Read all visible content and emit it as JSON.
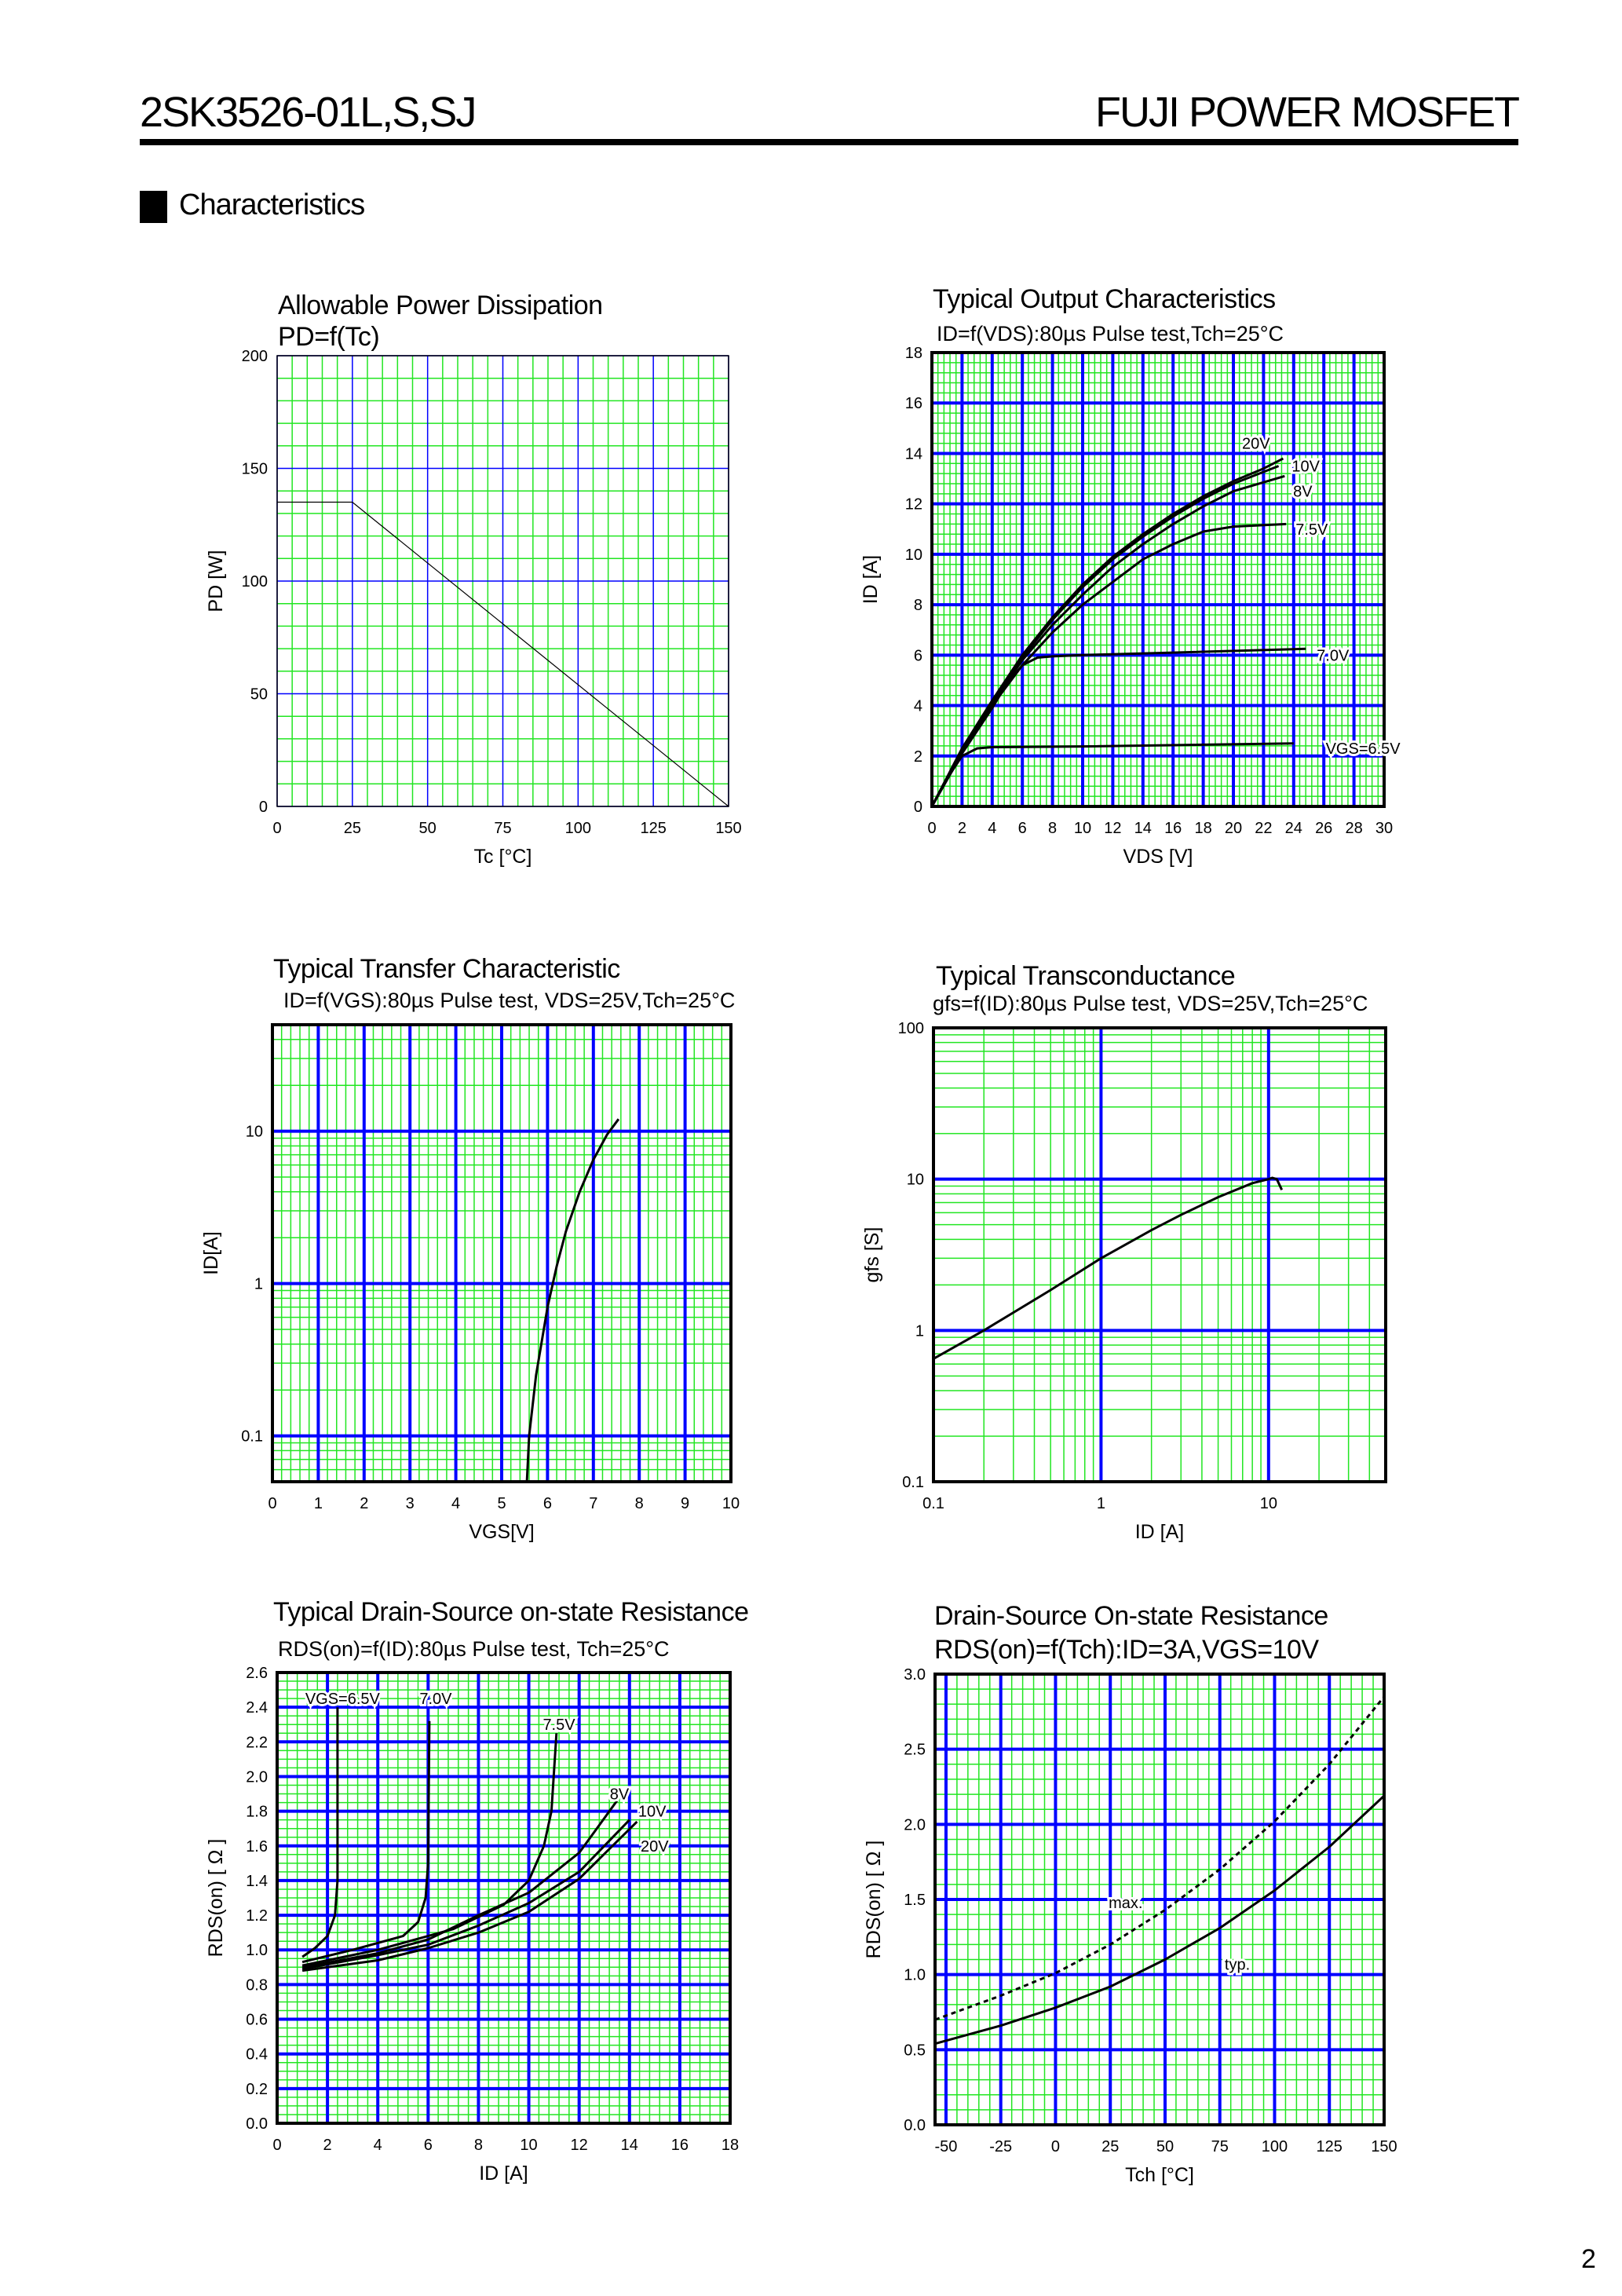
{
  "header": {
    "part_number": "2SK3526-01L,S,SJ",
    "brand": "FUJI POWER MOSFET",
    "section": "Characteristics",
    "page_number": "2"
  },
  "colors": {
    "grid_major": "#0000ff",
    "grid_minor": "#22e622",
    "curve": "#000000",
    "frame": "#000000"
  },
  "chart_data": [
    {
      "type": "line",
      "title": "Allowable Power Dissipation",
      "subtitle": "PD=f(Tc)",
      "xlabel": "Tc [°C]",
      "ylabel": "PD [W]",
      "x_axis": {
        "scale": "linear",
        "range": [
          0,
          150
        ],
        "major": 25,
        "minor": 5,
        "ticks": [
          "0",
          "25",
          "50",
          "75",
          "100",
          "125",
          "150"
        ]
      },
      "y_axis": {
        "scale": "linear",
        "range": [
          0,
          200
        ],
        "major": 50,
        "minor": 10,
        "ticks": [
          "0",
          "50",
          "100",
          "150",
          "200"
        ]
      },
      "grid": true,
      "series": [
        {
          "points": [
            [
              0,
              135
            ],
            [
              25,
              135
            ],
            [
              150,
              0
            ]
          ]
        }
      ]
    },
    {
      "type": "line",
      "title": "Typical Output Characteristics",
      "subtitle": "ID=f(VDS):80µs Pulse test,Tch=25°C",
      "xlabel": "VDS [V]",
      "ylabel": "ID [A]",
      "x_axis": {
        "scale": "linear",
        "range": [
          0,
          30
        ],
        "major": 2,
        "minor": 0.4,
        "ticks": [
          "0",
          "2",
          "4",
          "6",
          "8",
          "10",
          "12",
          "14",
          "16",
          "18",
          "20",
          "22",
          "24",
          "26",
          "28",
          "30"
        ]
      },
      "y_axis": {
        "scale": "linear",
        "range": [
          0,
          18
        ],
        "major": 2,
        "minor": 0.4,
        "ticks": [
          "0",
          "2",
          "4",
          "6",
          "8",
          "10",
          "12",
          "14",
          "16",
          "18"
        ]
      },
      "grid": true,
      "series": [
        {
          "name": "20V",
          "points": [
            [
              0,
              0
            ],
            [
              2,
              2.3
            ],
            [
              4,
              4.2
            ],
            [
              6,
              6.0
            ],
            [
              8,
              7.5
            ],
            [
              10,
              8.8
            ],
            [
              12,
              9.9
            ],
            [
              14,
              10.8
            ],
            [
              16,
              11.6
            ],
            [
              18,
              12.3
            ],
            [
              20,
              12.9
            ],
            [
              22,
              13.4
            ],
            [
              23.3,
              13.8
            ]
          ]
        },
        {
          "name": "10V",
          "points": [
            [
              0,
              0
            ],
            [
              2,
              2.25
            ],
            [
              4,
              4.15
            ],
            [
              6,
              5.9
            ],
            [
              8,
              7.4
            ],
            [
              10,
              8.7
            ],
            [
              12,
              9.8
            ],
            [
              14,
              10.7
            ],
            [
              16,
              11.5
            ],
            [
              18,
              12.2
            ],
            [
              20,
              12.8
            ],
            [
              23,
              13.5
            ]
          ]
        },
        {
          "name": "8V",
          "points": [
            [
              0,
              0
            ],
            [
              2,
              2.2
            ],
            [
              4,
              4.1
            ],
            [
              6,
              5.8
            ],
            [
              8,
              7.2
            ],
            [
              10,
              8.4
            ],
            [
              12,
              9.5
            ],
            [
              14,
              10.4
            ],
            [
              16,
              11.2
            ],
            [
              18,
              11.9
            ],
            [
              20,
              12.5
            ],
            [
              23.4,
              13.1
            ]
          ]
        },
        {
          "name": "7.5V",
          "points": [
            [
              0,
              0
            ],
            [
              2,
              2.2
            ],
            [
              4,
              4.0
            ],
            [
              6,
              5.6
            ],
            [
              8,
              6.9
            ],
            [
              10,
              8.0
            ],
            [
              12,
              8.9
            ],
            [
              14,
              9.8
            ],
            [
              16,
              10.4
            ],
            [
              18,
              10.9
            ],
            [
              20,
              11.1
            ],
            [
              23.5,
              11.2
            ]
          ]
        },
        {
          "name": "7.0V",
          "points": [
            [
              0,
              0
            ],
            [
              2,
              2.1
            ],
            [
              4,
              3.9
            ],
            [
              5,
              4.9
            ],
            [
              6,
              5.6
            ],
            [
              7,
              5.9
            ],
            [
              8,
              5.95
            ],
            [
              10,
              6.0
            ],
            [
              16,
              6.1
            ],
            [
              24.8,
              6.25
            ]
          ]
        },
        {
          "name": "VGS=6.5V",
          "points": [
            [
              0,
              0
            ],
            [
              1,
              1.1
            ],
            [
              2,
              2.0
            ],
            [
              3,
              2.3
            ],
            [
              4,
              2.35
            ],
            [
              10,
              2.38
            ],
            [
              24,
              2.5
            ]
          ]
        }
      ]
    },
    {
      "type": "line",
      "title": "Typical Transfer Characteristic",
      "subtitle": "ID=f(VGS):80µs Pulse test, VDS=25V,Tch=25°C",
      "xlabel": "VGS[V]",
      "ylabel": "ID[A]",
      "x_axis": {
        "scale": "linear",
        "range": [
          0,
          10
        ],
        "major": 1,
        "minor": 0.2,
        "ticks": [
          "0",
          "1",
          "2",
          "3",
          "4",
          "5",
          "6",
          "7",
          "8",
          "9",
          "10"
        ]
      },
      "y_axis": {
        "scale": "log",
        "range": [
          0.05,
          50
        ],
        "ticks": [
          "0.1",
          "1",
          "10"
        ]
      },
      "grid": true,
      "series": [
        {
          "points": [
            [
              5.55,
              0.05
            ],
            [
              5.6,
              0.1
            ],
            [
              5.75,
              0.25
            ],
            [
              6.0,
              0.7
            ],
            [
              6.2,
              1.3
            ],
            [
              6.4,
              2.2
            ],
            [
              6.7,
              4
            ],
            [
              7.0,
              6.5
            ],
            [
              7.3,
              9.5
            ],
            [
              7.55,
              12
            ]
          ]
        }
      ]
    },
    {
      "type": "line",
      "title": "Typical Transconductance",
      "subtitle": "gfs=f(ID):80µs Pulse test, VDS=25V,Tch=25°C",
      "xlabel": "ID [A]",
      "ylabel": "gfs [S]",
      "x_axis": {
        "scale": "log",
        "range": [
          0.1,
          50
        ],
        "ticks": [
          "0.1",
          "1",
          "10"
        ]
      },
      "y_axis": {
        "scale": "log",
        "range": [
          0.1,
          100
        ],
        "ticks": [
          "0.1",
          "1",
          "10",
          "100"
        ]
      },
      "grid": true,
      "series": [
        {
          "points": [
            [
              0.1,
              0.65
            ],
            [
              0.2,
              1.0
            ],
            [
              0.5,
              1.85
            ],
            [
              1,
              3.0
            ],
            [
              2,
              4.6
            ],
            [
              3,
              5.8
            ],
            [
              5,
              7.6
            ],
            [
              8,
              9.4
            ],
            [
              10,
              10
            ],
            [
              10.5,
              10.2
            ],
            [
              11.2,
              10
            ],
            [
              12,
              8.5
            ]
          ]
        }
      ]
    },
    {
      "type": "line",
      "title": "Typical Drain-Source on-state Resistance",
      "subtitle": "RDS(on)=f(ID):80µs Pulse test, Tch=25°C",
      "xlabel": "ID [A]",
      "ylabel": "RDS(on) [ Ω ]",
      "x_axis": {
        "scale": "linear",
        "range": [
          0,
          18
        ],
        "major": 2,
        "minor": 0.4,
        "ticks": [
          "0",
          "2",
          "4",
          "6",
          "8",
          "10",
          "12",
          "14",
          "16",
          "18"
        ]
      },
      "y_axis": {
        "scale": "linear",
        "range": [
          0,
          2.6
        ],
        "major": 0.2,
        "minor": 0.05,
        "ticks": [
          "0.0",
          "0.2",
          "0.4",
          "0.6",
          "0.8",
          "1.0",
          "1.2",
          "1.4",
          "1.6",
          "1.8",
          "2.0",
          "2.2",
          "2.4",
          "2.6"
        ]
      },
      "grid": true,
      "series": [
        {
          "name": "VGS=6.5V",
          "points": [
            [
              1,
              0.96
            ],
            [
              1.5,
              1.01
            ],
            [
              2,
              1.08
            ],
            [
              2.3,
              1.2
            ],
            [
              2.4,
              1.4
            ],
            [
              2.4,
              2.4
            ]
          ]
        },
        {
          "name": "7.0V",
          "points": [
            [
              1,
              0.93
            ],
            [
              3,
              1.0
            ],
            [
              5,
              1.08
            ],
            [
              5.6,
              1.16
            ],
            [
              5.9,
              1.3
            ],
            [
              6,
              1.5
            ],
            [
              6.05,
              2.32
            ]
          ]
        },
        {
          "name": "7.5V",
          "points": [
            [
              1,
              0.91
            ],
            [
              4,
              1.0
            ],
            [
              7,
              1.12
            ],
            [
              9,
              1.26
            ],
            [
              10,
              1.4
            ],
            [
              10.6,
              1.6
            ],
            [
              10.9,
              1.8
            ],
            [
              11.1,
              2.25
            ]
          ]
        },
        {
          "name": "8V",
          "points": [
            [
              1,
              0.9
            ],
            [
              4,
              0.98
            ],
            [
              6,
              1.06
            ],
            [
              8,
              1.2
            ],
            [
              10,
              1.33
            ],
            [
              12,
              1.56
            ],
            [
              13.5,
              1.86
            ]
          ]
        },
        {
          "name": "10V",
          "points": [
            [
              1,
              0.89
            ],
            [
              4,
              0.97
            ],
            [
              6,
              1.03
            ],
            [
              8,
              1.14
            ],
            [
              10,
              1.27
            ],
            [
              12,
              1.45
            ],
            [
              14,
              1.75
            ]
          ]
        },
        {
          "name": "20V",
          "points": [
            [
              1,
              0.88
            ],
            [
              4,
              0.94
            ],
            [
              6,
              1.01
            ],
            [
              8,
              1.1
            ],
            [
              10,
              1.22
            ],
            [
              12,
              1.41
            ],
            [
              14.3,
              1.74
            ]
          ]
        }
      ]
    },
    {
      "type": "line",
      "title": "Drain-Source On-state Resistance",
      "subtitle": "RDS(on)=f(Tch):ID=3A,VGS=10V",
      "xlabel": "Tch [°C]",
      "ylabel": "RDS(on) [ Ω ]",
      "x_axis": {
        "scale": "linear",
        "range": [
          -55,
          150
        ],
        "major": 25,
        "minor": 5,
        "ticks": [
          "-50",
          "-25",
          "0",
          "25",
          "50",
          "75",
          "100",
          "125",
          "150"
        ]
      },
      "y_axis": {
        "scale": "linear",
        "range": [
          0,
          3.0
        ],
        "major": 0.5,
        "minor": 0.1,
        "ticks": [
          "0.0",
          "0.5",
          "1.0",
          "1.5",
          "2.0",
          "2.5",
          "3.0"
        ]
      },
      "grid": true,
      "series": [
        {
          "name": "max.",
          "style": "dashed",
          "points": [
            [
              -55,
              0.7
            ],
            [
              -25,
              0.86
            ],
            [
              0,
              1.01
            ],
            [
              25,
              1.2
            ],
            [
              50,
              1.43
            ],
            [
              75,
              1.7
            ],
            [
              100,
              2.02
            ],
            [
              125,
              2.4
            ],
            [
              150,
              2.85
            ]
          ]
        },
        {
          "name": "typ.",
          "style": "solid",
          "points": [
            [
              -55,
              0.54
            ],
            [
              -25,
              0.66
            ],
            [
              0,
              0.78
            ],
            [
              25,
              0.92
            ],
            [
              50,
              1.1
            ],
            [
              75,
              1.31
            ],
            [
              100,
              1.56
            ],
            [
              125,
              1.85
            ],
            [
              150,
              2.19
            ]
          ]
        }
      ]
    }
  ]
}
